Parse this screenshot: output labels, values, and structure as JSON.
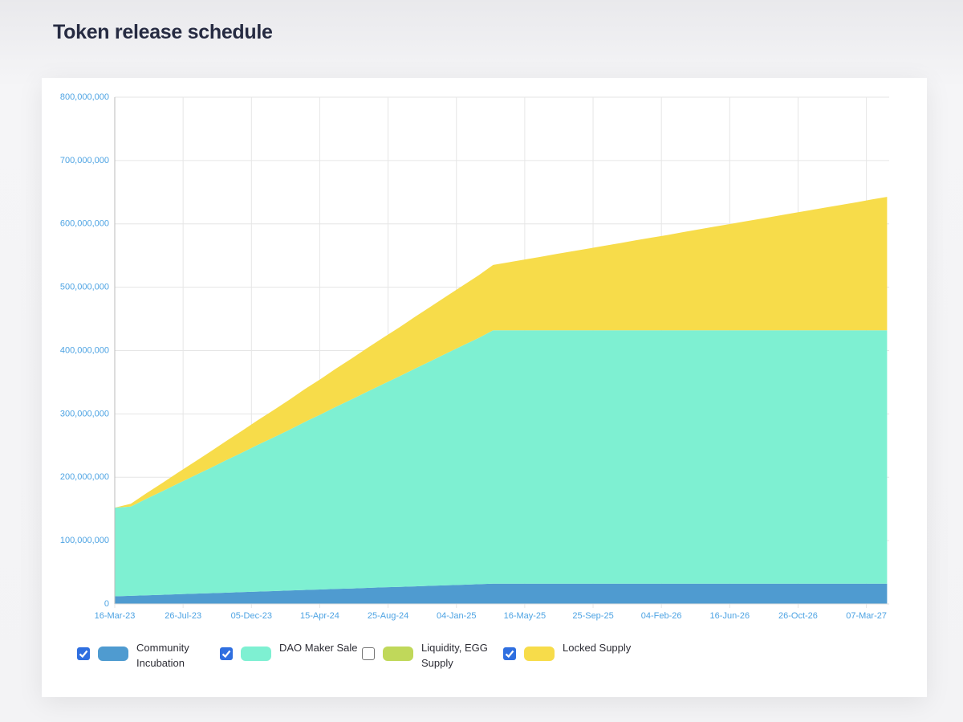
{
  "chart_data": {
    "type": "stacked_area",
    "title": "Token release schedule",
    "x": [
      "2023-03-16",
      "2023-04-16",
      "2023-05-16",
      "2023-06-16",
      "2023-07-16",
      "2023-08-16",
      "2023-09-16",
      "2023-10-16",
      "2023-11-16",
      "2023-12-16",
      "2024-01-16",
      "2024-02-16",
      "2024-03-16",
      "2024-04-16",
      "2024-05-16",
      "2024-06-16",
      "2024-07-16",
      "2024-08-16",
      "2024-09-16",
      "2024-10-16",
      "2024-11-16",
      "2024-12-16",
      "2025-01-16",
      "2025-02-16",
      "2025-03-16",
      "2025-04-16",
      "2025-05-16",
      "2025-06-16",
      "2025-07-16",
      "2025-08-16",
      "2025-09-16",
      "2025-10-16",
      "2025-11-16",
      "2025-12-16",
      "2026-01-16",
      "2026-02-16",
      "2026-03-16",
      "2026-04-16",
      "2026-05-16",
      "2026-06-16",
      "2026-07-16",
      "2026-08-16",
      "2026-09-16",
      "2026-10-16",
      "2026-11-16",
      "2026-12-16",
      "2027-01-16",
      "2027-02-16",
      "2027-03-16",
      "2027-04-16"
    ],
    "xlim": [
      "2023-03-16",
      "2027-04-20"
    ],
    "xticks": [
      {
        "value": "2023-03-16",
        "label": "16-Mar-23"
      },
      {
        "value": "2023-07-26",
        "label": "26-Jul-23"
      },
      {
        "value": "2023-12-05",
        "label": "05-Dec-23"
      },
      {
        "value": "2024-04-15",
        "label": "15-Apr-24"
      },
      {
        "value": "2024-08-25",
        "label": "25-Aug-24"
      },
      {
        "value": "2025-01-04",
        "label": "04-Jan-25"
      },
      {
        "value": "2025-05-16",
        "label": "16-May-25"
      },
      {
        "value": "2025-09-25",
        "label": "25-Sep-25"
      },
      {
        "value": "2026-02-04",
        "label": "04-Feb-26"
      },
      {
        "value": "2026-06-16",
        "label": "16-Jun-26"
      },
      {
        "value": "2026-10-26",
        "label": "26-Oct-26"
      },
      {
        "value": "2027-03-07",
        "label": "07-Mar-27"
      }
    ],
    "ylim": [
      0,
      800000000
    ],
    "yticks": [
      0,
      {
        "value": 100000000,
        "label": "100,000,000"
      },
      {
        "value": 200000000,
        "label": "200,000,000"
      },
      {
        "value": 300000000,
        "label": "300,000,000"
      },
      {
        "value": 400000000,
        "label": "400,000,000"
      },
      {
        "value": 500000000,
        "label": "500,000,000"
      },
      {
        "value": 600000000,
        "label": "600,000,000"
      },
      {
        "value": 700000000,
        "label": "700,000,000"
      },
      {
        "value": 800000000,
        "label": "800,000,000"
      }
    ],
    "grid": true,
    "series": [
      {
        "name": "Community Incubation",
        "color": "#4f9bd0",
        "values": [
          12000000,
          12800000,
          13700000,
          14500000,
          15300000,
          16200000,
          17000000,
          17800000,
          18700000,
          19500000,
          20300000,
          21200000,
          22000000,
          22800000,
          23700000,
          24500000,
          25300000,
          26200000,
          27000000,
          27800000,
          28700000,
          29500000,
          30300000,
          31200000,
          32000000,
          32000000,
          32000000,
          32000000,
          32000000,
          32000000,
          32000000,
          32000000,
          32000000,
          32000000,
          32000000,
          32000000,
          32000000,
          32000000,
          32000000,
          32000000,
          32000000,
          32000000,
          32000000,
          32000000,
          32000000,
          32000000,
          32000000,
          32000000,
          32000000,
          32000000
        ]
      },
      {
        "name": "DAO Maker Sale",
        "color": "#7ef0d2",
        "values": [
          140000000,
          141000000,
          152300000,
          163500000,
          174800000,
          186000000,
          197300000,
          208600000,
          219800000,
          231100000,
          242300000,
          253600000,
          264900000,
          276100000,
          287400000,
          298700000,
          309900000,
          321200000,
          332400000,
          343700000,
          355000000,
          366200000,
          377500000,
          388700000,
          400000000,
          400000000,
          400000000,
          400000000,
          400000000,
          400000000,
          400000000,
          400000000,
          400000000,
          400000000,
          400000000,
          400000000,
          400000000,
          400000000,
          400000000,
          400000000,
          400000000,
          400000000,
          400000000,
          400000000,
          400000000,
          400000000,
          400000000,
          400000000,
          400000000,
          400000000
        ]
      },
      {
        "name": "Liquidity, EGG Supply",
        "color": "#c0d85a",
        "hidden": true
      },
      {
        "name": "Locked Supply",
        "color": "#f7dc4a",
        "values": [
          0,
          4300000,
          8600000,
          12900000,
          17200000,
          21500000,
          25800000,
          30100000,
          34400000,
          38700000,
          43000000,
          47300000,
          51600000,
          55900000,
          60200000,
          64500000,
          68800000,
          73100000,
          77400000,
          81700000,
          86000000,
          90300000,
          94600000,
          98900000,
          103200000,
          107500000,
          111800000,
          116100000,
          120400000,
          124700000,
          129000000,
          133300000,
          137600000,
          141900000,
          146200000,
          150500000,
          154800000,
          159100000,
          163400000,
          167700000,
          172000000,
          176300000,
          180600000,
          184900000,
          189200000,
          193500000,
          197800000,
          202100000,
          206400000,
          210700000
        ]
      }
    ]
  }
}
